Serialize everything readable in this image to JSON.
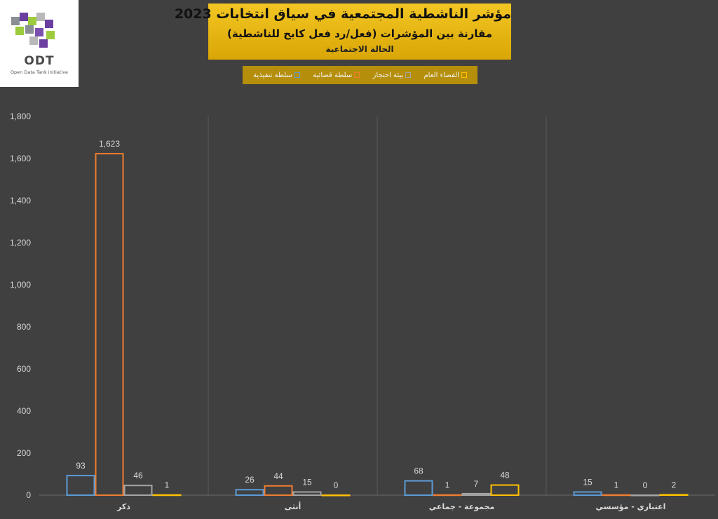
{
  "logo": {
    "text": "ODT",
    "subtitle": "Open Data Tank initiative"
  },
  "colors": {
    "title_bg": "#f0c21e",
    "legend_bg": "#b58f0b",
    "background": "#404040"
  },
  "chart_data": {
    "type": "bar",
    "title": "مؤشر الناشطية المجتمعية في سياق انتخابات 2023",
    "subtitle": "مقارنة بين المؤشرات (فعل/رد فعل كابح للناشطية)",
    "subtitle2": "الحالة الاجتماعية",
    "xlabel": "",
    "ylabel": "",
    "ylim": [
      0,
      1800
    ],
    "yticks": [
      0,
      200,
      400,
      600,
      800,
      1000,
      1200,
      1400,
      1600,
      1800
    ],
    "ytick_labels": [
      "0",
      "200",
      "400",
      "600",
      "800",
      "1,000",
      "1,200",
      "1,400",
      "1,600",
      "1,800"
    ],
    "grid": "vertical category separators",
    "legend_position": "top",
    "categories": [
      "ذكر",
      "أنثى",
      "مجموعة - جماعي",
      "اعتباري - مؤسسي"
    ],
    "series": [
      {
        "name": "سلطة تنفيذية",
        "color": "#5b9bd5",
        "values": [
          93,
          26,
          68,
          15
        ],
        "labels": [
          "93",
          "26",
          "68",
          "15"
        ]
      },
      {
        "name": "سلطة قضائية",
        "color": "#ed7d31",
        "values": [
          1623,
          44,
          1,
          1
        ],
        "labels": [
          "1,623",
          "44",
          "1",
          "1"
        ]
      },
      {
        "name": "بيئة احتجاز",
        "color": "#a5a5a5",
        "values": [
          46,
          15,
          7,
          0
        ],
        "labels": [
          "46",
          "15",
          "7",
          "0"
        ]
      },
      {
        "name": "الفضاء العام",
        "color": "#ffc000",
        "values": [
          1,
          0,
          48,
          2
        ],
        "labels": [
          "1",
          "0",
          "48",
          "2"
        ]
      }
    ]
  }
}
